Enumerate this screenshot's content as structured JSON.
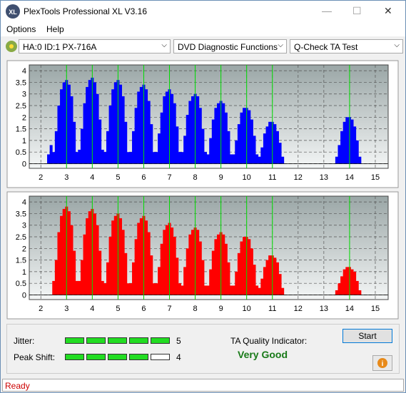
{
  "window": {
    "title": "PlexTools Professional XL V3.16"
  },
  "menu": [
    "Options",
    "Help"
  ],
  "toolbar": {
    "drive": "HA:0 ID:1  PX-716A",
    "function": "DVD Diagnostic Functions",
    "test": "Q-Check TA Test"
  },
  "chart_data": [
    {
      "type": "bar",
      "color": "#0000ff",
      "marker_color": "#00dd00",
      "grid": true,
      "xlim": [
        1.55,
        15.5
      ],
      "ylim": [
        -0.2,
        4.25
      ],
      "xticks": [
        2,
        3,
        4,
        5,
        6,
        7,
        8,
        9,
        10,
        11,
        12,
        13,
        14,
        15
      ],
      "yticks": [
        0,
        0.5,
        1,
        1.5,
        2,
        2.5,
        3,
        3.5,
        4
      ],
      "markers": [
        3,
        4,
        5,
        6,
        7,
        8,
        9,
        10,
        11,
        14
      ],
      "x": [
        2.0,
        2.1,
        2.2,
        2.3,
        2.4,
        2.5,
        2.6,
        2.7,
        2.8,
        2.9,
        3.0,
        3.1,
        3.2,
        3.3,
        3.4,
        3.5,
        3.6,
        3.7,
        3.8,
        3.9,
        4.0,
        4.1,
        4.2,
        4.3,
        4.4,
        4.5,
        4.6,
        4.7,
        4.8,
        4.9,
        5.0,
        5.1,
        5.2,
        5.3,
        5.4,
        5.5,
        5.6,
        5.7,
        5.8,
        5.9,
        6.0,
        6.1,
        6.2,
        6.3,
        6.4,
        6.5,
        6.6,
        6.7,
        6.8,
        6.9,
        7.0,
        7.1,
        7.2,
        7.3,
        7.4,
        7.5,
        7.6,
        7.7,
        7.8,
        7.9,
        8.0,
        8.1,
        8.2,
        8.3,
        8.4,
        8.5,
        8.6,
        8.7,
        8.8,
        8.9,
        9.0,
        9.1,
        9.2,
        9.3,
        9.4,
        9.5,
        9.6,
        9.7,
        9.8,
        9.9,
        10.0,
        10.1,
        10.2,
        10.3,
        10.4,
        10.5,
        10.6,
        10.7,
        10.8,
        10.9,
        11.0,
        11.1,
        11.2,
        11.3,
        11.4,
        11.5,
        11.6,
        11.7,
        11.8,
        11.9,
        12.0,
        12.1,
        12.2,
        12.3,
        12.4,
        12.5,
        12.6,
        12.7,
        12.8,
        12.9,
        13.0,
        13.1,
        13.2,
        13.3,
        13.4,
        13.5,
        13.6,
        13.7,
        13.8,
        13.9,
        14.0,
        14.1,
        14.2,
        14.3,
        14.4,
        14.5
      ],
      "values": [
        0,
        0,
        0,
        0.4,
        0.8,
        0.5,
        1.4,
        2.5,
        3.2,
        3.5,
        3.6,
        3.4,
        2.9,
        1.8,
        0.5,
        0.6,
        1.5,
        2.6,
        3.3,
        3.6,
        3.7,
        3.5,
        3.0,
        1.9,
        0.6,
        0.5,
        1.4,
        2.5,
        3.2,
        3.5,
        3.6,
        3.4,
        2.9,
        1.8,
        0.5,
        0.5,
        1.4,
        2.4,
        3.1,
        3.3,
        3.4,
        3.2,
        2.7,
        1.7,
        0.5,
        0.5,
        1.3,
        2.2,
        2.9,
        3.1,
        3.2,
        3.0,
        2.6,
        1.6,
        0.5,
        0.5,
        1.2,
        2.1,
        2.7,
        2.9,
        3.0,
        2.9,
        2.4,
        1.5,
        0.5,
        0.4,
        1.1,
        1.9,
        2.4,
        2.6,
        2.7,
        2.6,
        2.2,
        1.4,
        0.4,
        0.4,
        1.0,
        1.7,
        2.2,
        2.4,
        2.4,
        2.3,
        1.9,
        1.2,
        0.4,
        0.3,
        0.7,
        1.3,
        1.6,
        1.8,
        1.8,
        1.7,
        1.4,
        0.9,
        0.3,
        0,
        0,
        0,
        0,
        0,
        0,
        0,
        0,
        0,
        0,
        0,
        0,
        0,
        0,
        0,
        0,
        0,
        0,
        0,
        0,
        0.3,
        0.8,
        1.4,
        1.8,
        2.0,
        2.0,
        1.9,
        1.6,
        1.0,
        0.3,
        0
      ]
    },
    {
      "type": "bar",
      "color": "#ff0000",
      "marker_color": "#00dd00",
      "grid": true,
      "xlim": [
        1.55,
        15.5
      ],
      "ylim": [
        -0.2,
        4.25
      ],
      "xticks": [
        2,
        3,
        4,
        5,
        6,
        7,
        8,
        9,
        10,
        11,
        12,
        13,
        14,
        15
      ],
      "yticks": [
        0,
        0.5,
        1,
        1.5,
        2,
        2.5,
        3,
        3.5,
        4
      ],
      "markers": [
        3,
        4,
        5,
        6,
        7,
        8,
        9,
        10,
        11,
        14
      ],
      "x": [
        2.0,
        2.1,
        2.2,
        2.3,
        2.4,
        2.5,
        2.6,
        2.7,
        2.8,
        2.9,
        3.0,
        3.1,
        3.2,
        3.3,
        3.4,
        3.5,
        3.6,
        3.7,
        3.8,
        3.9,
        4.0,
        4.1,
        4.2,
        4.3,
        4.4,
        4.5,
        4.6,
        4.7,
        4.8,
        4.9,
        5.0,
        5.1,
        5.2,
        5.3,
        5.4,
        5.5,
        5.6,
        5.7,
        5.8,
        5.9,
        6.0,
        6.1,
        6.2,
        6.3,
        6.4,
        6.5,
        6.6,
        6.7,
        6.8,
        6.9,
        7.0,
        7.1,
        7.2,
        7.3,
        7.4,
        7.5,
        7.6,
        7.7,
        7.8,
        7.9,
        8.0,
        8.1,
        8.2,
        8.3,
        8.4,
        8.5,
        8.6,
        8.7,
        8.8,
        8.9,
        9.0,
        9.1,
        9.2,
        9.3,
        9.4,
        9.5,
        9.6,
        9.7,
        9.8,
        9.9,
        10.0,
        10.1,
        10.2,
        10.3,
        10.4,
        10.5,
        10.6,
        10.7,
        10.8,
        10.9,
        11.0,
        11.1,
        11.2,
        11.3,
        11.4,
        11.5,
        11.6,
        11.7,
        11.8,
        11.9,
        12.0,
        12.1,
        12.2,
        12.3,
        12.4,
        12.5,
        12.6,
        12.7,
        12.8,
        12.9,
        13.0,
        13.1,
        13.2,
        13.3,
        13.4,
        13.5,
        13.6,
        13.7,
        13.8,
        13.9,
        14.0,
        14.1,
        14.2,
        14.3,
        14.4,
        14.5
      ],
      "values": [
        0,
        0,
        0,
        0,
        0,
        0.6,
        1.5,
        2.7,
        3.4,
        3.7,
        3.8,
        3.6,
        3.0,
        1.9,
        0.6,
        0.6,
        1.5,
        2.6,
        3.3,
        3.6,
        3.7,
        3.5,
        3.0,
        1.9,
        0.6,
        0.5,
        1.4,
        2.5,
        3.2,
        3.4,
        3.5,
        3.3,
        2.8,
        1.8,
        0.5,
        0.5,
        1.4,
        2.4,
        3.1,
        3.3,
        3.4,
        3.2,
        2.7,
        1.7,
        0.5,
        0.5,
        1.2,
        2.2,
        2.8,
        3.0,
        3.1,
        2.9,
        2.5,
        1.6,
        0.5,
        0.4,
        1.2,
        2.0,
        2.6,
        2.8,
        2.9,
        2.8,
        2.3,
        1.5,
        0.4,
        0.4,
        1.1,
        1.9,
        2.4,
        2.6,
        2.7,
        2.6,
        2.2,
        1.4,
        0.4,
        0.4,
        1.0,
        1.8,
        2.3,
        2.5,
        2.5,
        2.4,
        2.0,
        1.3,
        0.4,
        0.3,
        0.7,
        1.2,
        1.5,
        1.7,
        1.7,
        1.6,
        1.4,
        0.9,
        0.3,
        0,
        0,
        0,
        0,
        0,
        0,
        0,
        0,
        0,
        0,
        0,
        0,
        0,
        0,
        0,
        0,
        0,
        0,
        0,
        0,
        0.2,
        0.5,
        0.8,
        1.1,
        1.2,
        1.2,
        1.1,
        1.0,
        0.6,
        0.2,
        0
      ]
    }
  ],
  "results": {
    "jitter_label": "Jitter:",
    "jitter": 5,
    "peak_shift_label": "Peak Shift:",
    "peak_shift": 4,
    "meter_color": "#22dd22",
    "ta_label": "TA Quality Indicator:",
    "ta_rating": "Very Good",
    "start": "Start"
  },
  "status": "Ready"
}
